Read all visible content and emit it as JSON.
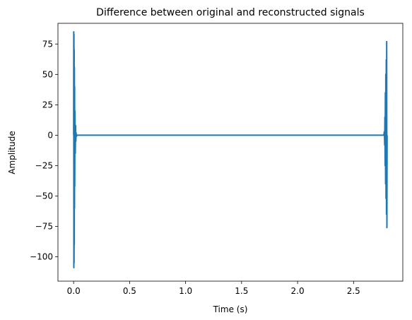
{
  "chart_data": {
    "type": "line",
    "title": "Difference between original and reconstructed signals",
    "xlabel": "Time (s)",
    "ylabel": "Amplitude",
    "xlim": [
      -0.14,
      2.94
    ],
    "ylim": [
      -120,
      92
    ],
    "xticks": [
      0.0,
      0.5,
      1.0,
      1.5,
      2.0,
      2.5
    ],
    "xtick_labels": [
      "0.0",
      "0.5",
      "1.0",
      "1.5",
      "2.0",
      "2.5"
    ],
    "yticks": [
      -100,
      -75,
      -50,
      -25,
      0,
      25,
      50,
      75
    ],
    "ytick_labels": [
      "−100",
      "−75",
      "−50",
      "−25",
      "0",
      "25",
      "50",
      "75"
    ],
    "grid": false,
    "series": [
      {
        "color": "#1f77b4",
        "x": [
          0.0,
          0.001,
          0.002,
          0.003,
          0.004,
          0.005,
          0.006,
          0.007,
          0.008,
          0.009,
          0.01,
          0.012,
          0.015,
          0.018,
          0.02,
          0.022,
          0.025,
          0.03,
          0.05,
          0.5,
          1.0,
          1.5,
          2.0,
          2.5,
          2.77,
          2.775,
          2.778,
          2.78,
          2.782,
          2.784,
          2.786,
          2.788,
          2.79,
          2.792,
          2.794,
          2.796,
          2.798,
          2.8
        ],
        "y": [
          0,
          85,
          -109,
          83,
          -105,
          70,
          -90,
          56,
          -60,
          40,
          -42,
          20,
          -15,
          8,
          -5,
          2,
          -1,
          0,
          0,
          0,
          0,
          0,
          0,
          0,
          0,
          3,
          -8,
          15,
          -25,
          35,
          -40,
          50,
          -52,
          62,
          -65,
          77,
          -76,
          0
        ]
      }
    ]
  }
}
